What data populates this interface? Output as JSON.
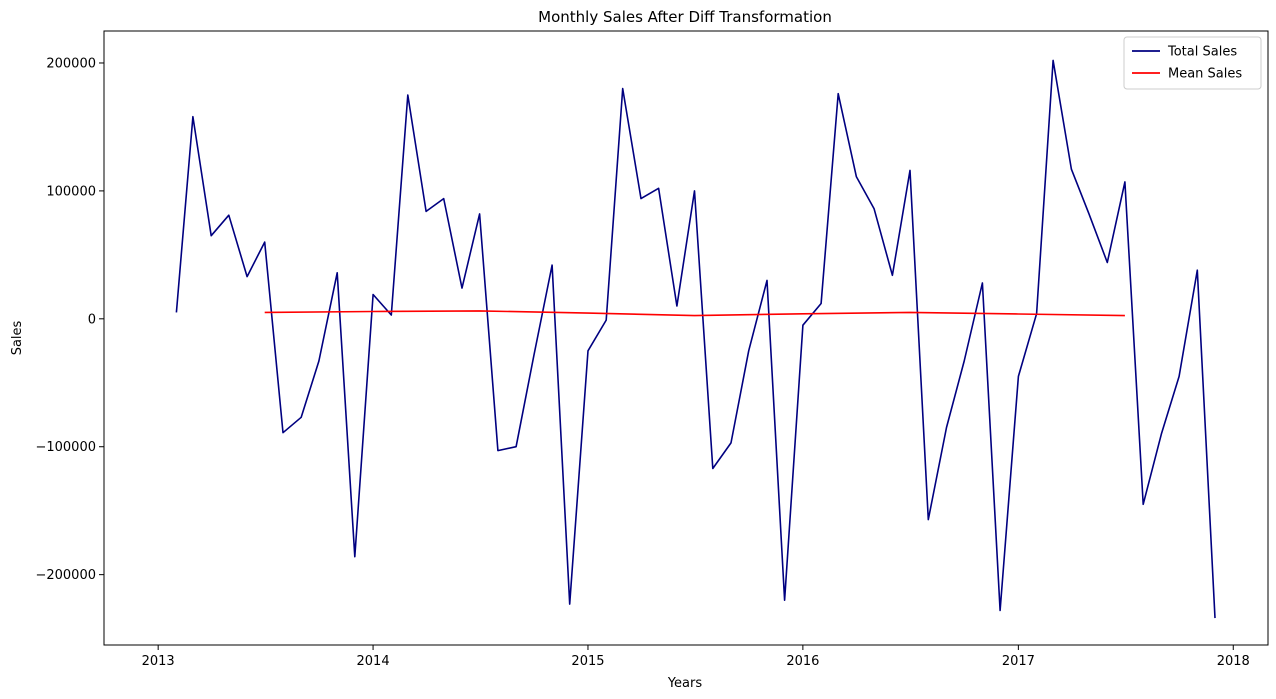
{
  "chart_data": {
    "type": "line",
    "title": "Monthly Sales After Diff Transformation",
    "xlabel": "Years",
    "ylabel": "Sales",
    "xlim": [
      "2012-10-01",
      "2018-03-01"
    ],
    "ylim": [
      -255000,
      225000
    ],
    "x_ticks": [
      "2013",
      "2014",
      "2015",
      "2016",
      "2017",
      "2018"
    ],
    "y_ticks": [
      {
        "value": -200000,
        "label": "−200000"
      },
      {
        "value": -100000,
        "label": "−100000"
      },
      {
        "value": 0,
        "label": "0"
      },
      {
        "value": 100000,
        "label": "100000"
      },
      {
        "value": 200000,
        "label": "200000"
      }
    ],
    "grid": false,
    "legend_position": "top-right",
    "series": [
      {
        "name": "Total Sales",
        "color": "#000080",
        "x": [
          "2013-02-01",
          "2013-03-01",
          "2013-04-01",
          "2013-05-01",
          "2013-06-01",
          "2013-07-01",
          "2013-08-01",
          "2013-09-01",
          "2013-10-01",
          "2013-11-01",
          "2013-12-01",
          "2014-01-01",
          "2014-02-01",
          "2014-03-01",
          "2014-04-01",
          "2014-05-01",
          "2014-06-01",
          "2014-07-01",
          "2014-08-01",
          "2014-09-01",
          "2014-10-01",
          "2014-11-01",
          "2014-12-01",
          "2015-01-01",
          "2015-02-01",
          "2015-03-01",
          "2015-04-01",
          "2015-05-01",
          "2015-06-01",
          "2015-07-01",
          "2015-08-01",
          "2015-09-01",
          "2015-10-01",
          "2015-11-01",
          "2015-12-01",
          "2016-01-01",
          "2016-02-01",
          "2016-03-01",
          "2016-04-01",
          "2016-05-01",
          "2016-06-01",
          "2016-07-01",
          "2016-08-01",
          "2016-09-01",
          "2016-10-01",
          "2016-11-01",
          "2016-12-01",
          "2017-01-01",
          "2017-02-01",
          "2017-03-01",
          "2017-04-01",
          "2017-05-01",
          "2017-06-01",
          "2017-07-01",
          "2017-08-01",
          "2017-09-01",
          "2017-10-01",
          "2017-11-01",
          "2017-12-01"
        ],
        "values": [
          5000,
          158000,
          65000,
          81000,
          33000,
          60000,
          -89000,
          -77000,
          -33000,
          36000,
          -186000,
          19000,
          3000,
          175000,
          84000,
          94000,
          24000,
          82000,
          -103000,
          -100000,
          -29000,
          42000,
          -223000,
          -25000,
          -1000,
          180000,
          94000,
          102000,
          10000,
          100000,
          -117000,
          -97000,
          -25000,
          30000,
          -220000,
          -5000,
          12000,
          176000,
          111000,
          86000,
          34000,
          116000,
          -157000,
          -85000,
          -33000,
          28000,
          -228000,
          -45000,
          4000,
          202000,
          117000,
          82000,
          44000,
          107000,
          -145000,
          -90000,
          -45000,
          38000,
          -234000
        ]
      },
      {
        "name": "Mean Sales",
        "color": "#ff0000",
        "x": [
          "2013-07-01",
          "2014-01-01",
          "2014-07-01",
          "2015-01-01",
          "2015-07-01",
          "2016-01-01",
          "2016-07-01",
          "2017-01-01",
          "2017-07-01"
        ],
        "values": [
          5000,
          5700,
          6200,
          4500,
          2500,
          3900,
          5000,
          3800,
          2500
        ]
      }
    ]
  }
}
